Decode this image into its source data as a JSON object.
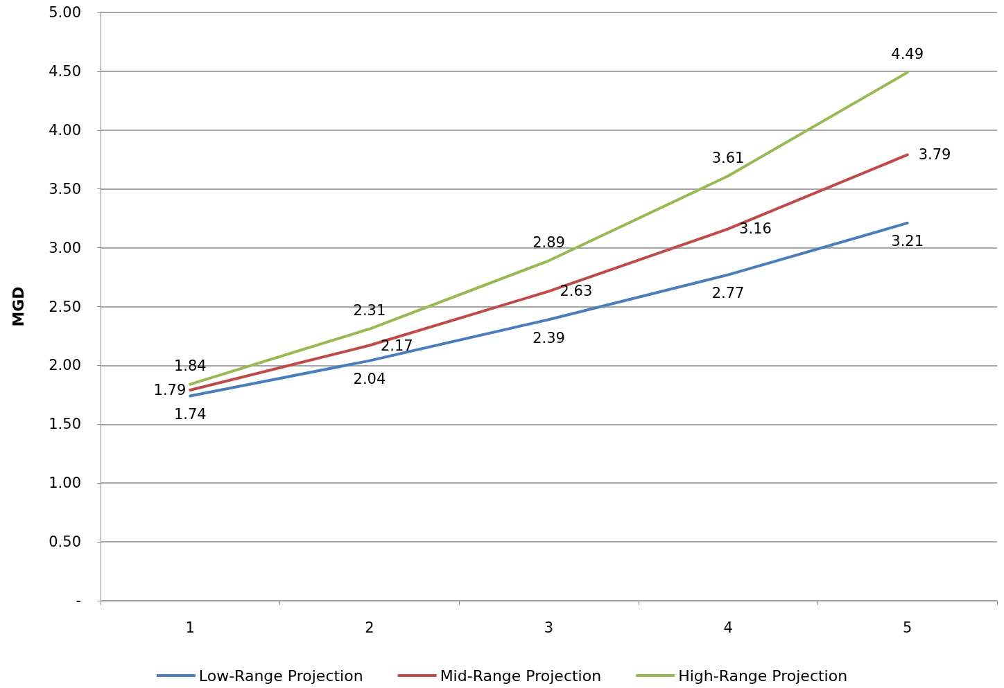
{
  "chart_data": {
    "type": "line",
    "ylabel": "MGD",
    "categories": [
      "1",
      "2",
      "3",
      "4",
      "5"
    ],
    "series": [
      {
        "name": "Low-Range Projection",
        "color": "#4a7ebb",
        "values": [
          1.74,
          2.04,
          2.39,
          2.77,
          3.21
        ]
      },
      {
        "name": "Mid-Range Projection",
        "color": "#be4b48",
        "values": [
          1.79,
          2.17,
          2.63,
          3.16,
          3.79
        ]
      },
      {
        "name": "High-Range Projection",
        "color": "#98b954",
        "values": [
          1.84,
          2.31,
          2.89,
          3.61,
          4.49
        ]
      }
    ],
    "ylim": [
      0,
      5
    ],
    "yticks": [
      {
        "value": 0,
        "label": "-"
      },
      {
        "value": 0.5,
        "label": "0.50"
      },
      {
        "value": 1,
        "label": "1.00"
      },
      {
        "value": 1.5,
        "label": "1.50"
      },
      {
        "value": 2,
        "label": "2.00"
      },
      {
        "value": 2.5,
        "label": "2.50"
      },
      {
        "value": 3,
        "label": "3.00"
      },
      {
        "value": 3.5,
        "label": "3.50"
      },
      {
        "value": 4,
        "label": "4.00"
      },
      {
        "value": 4.5,
        "label": "4.50"
      },
      {
        "value": 5,
        "label": "5.00"
      }
    ],
    "grid": "y",
    "legend": "bottom",
    "marker": "none",
    "line_style": "solid",
    "data_labels": true
  }
}
